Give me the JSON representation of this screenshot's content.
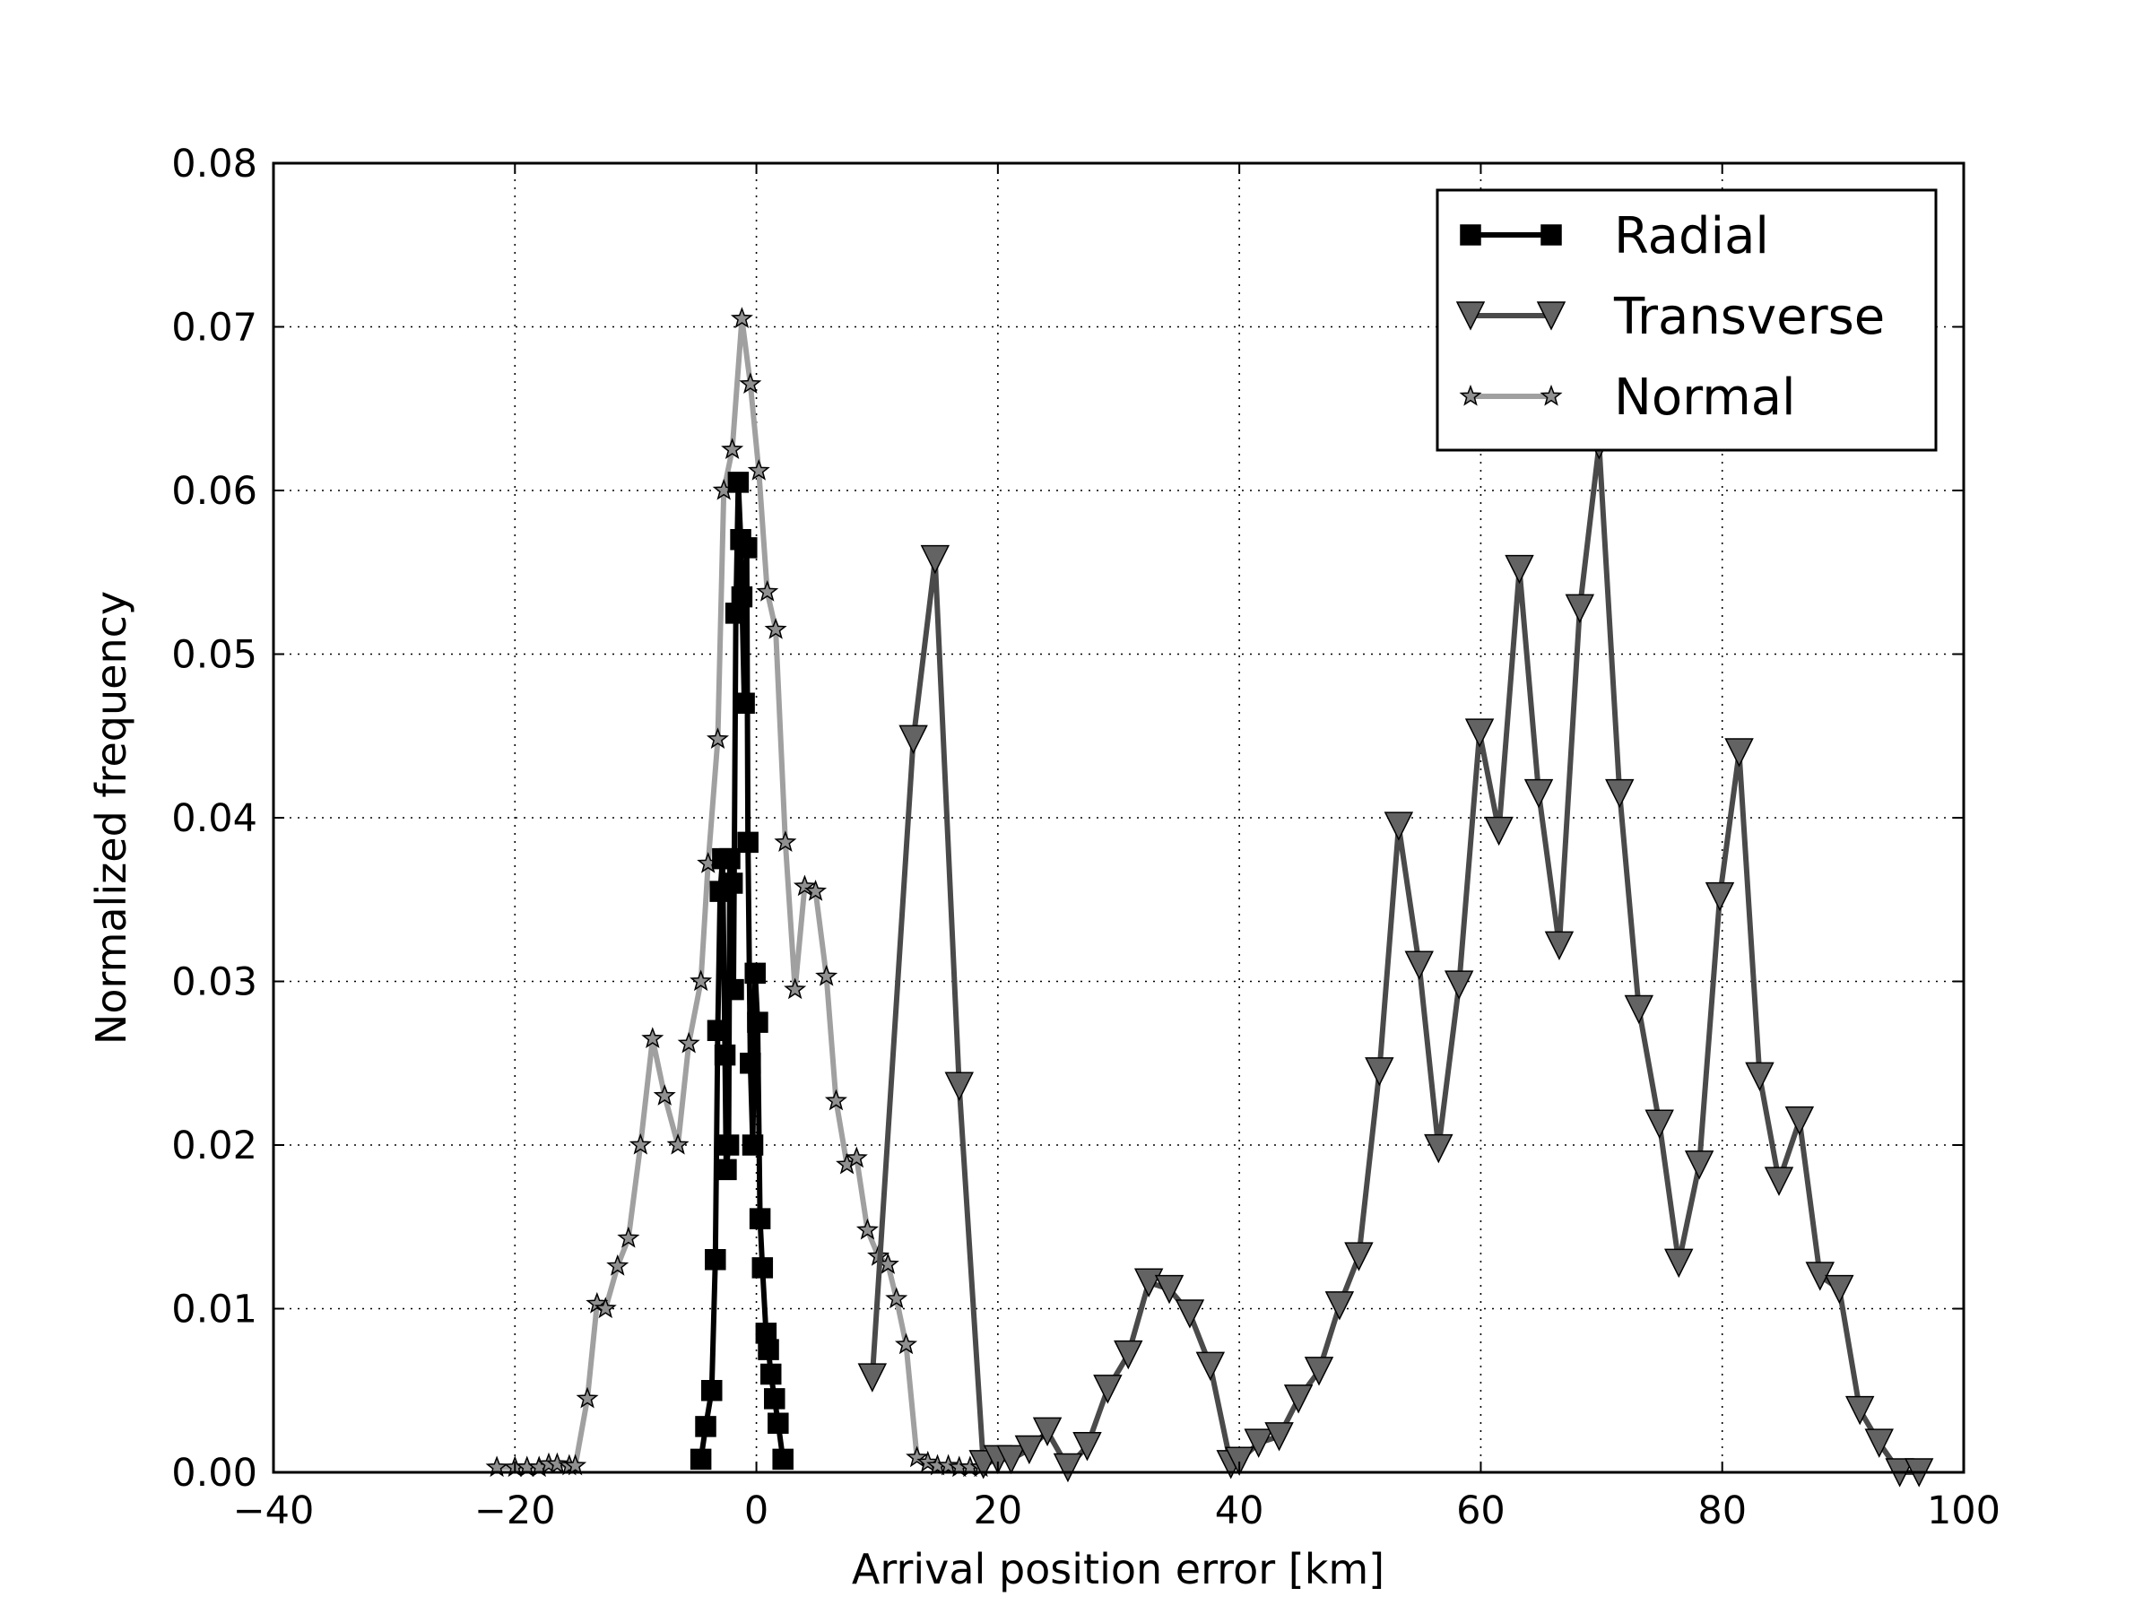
{
  "chart_data": {
    "type": "line",
    "title": "",
    "xlabel": "Arrival position error [km]",
    "ylabel": "Normalized frequency",
    "xlim": [
      -40,
      100
    ],
    "ylim": [
      0,
      0.08
    ],
    "xticks": [
      -40,
      -20,
      0,
      20,
      40,
      60,
      80,
      100
    ],
    "xtick_labels": [
      "−40",
      "−20",
      "0",
      "20",
      "40",
      "60",
      "80",
      "100"
    ],
    "yticks": [
      0,
      0.01,
      0.02,
      0.03,
      0.04,
      0.05,
      0.06,
      0.07,
      0.08
    ],
    "ytick_labels": [
      "0.00",
      "0.01",
      "0.02",
      "0.03",
      "0.04",
      "0.05",
      "0.06",
      "0.07",
      "0.08"
    ],
    "grid": true,
    "legend_position": "top-right",
    "series": [
      {
        "name": "Radial",
        "marker": "square",
        "color": "#000000",
        "marker_fill": "#000000",
        "x": [
          -4.6,
          -4.2,
          -3.7,
          -3.4,
          -3.2,
          -3.0,
          -2.8,
          -2.6,
          -2.5,
          -2.3,
          -2.2,
          -2.0,
          -1.9,
          -1.7,
          -1.5,
          -1.3,
          -1.2,
          -1.0,
          -0.8,
          -0.7,
          -0.5,
          -0.3,
          -0.1,
          0.1,
          0.3,
          0.5,
          0.8,
          1.0,
          1.2,
          1.5,
          1.8,
          2.2
        ],
        "y": [
          0.0008,
          0.0028,
          0.005,
          0.013,
          0.027,
          0.0355,
          0.0375,
          0.0255,
          0.0185,
          0.02,
          0.0375,
          0.036,
          0.0295,
          0.0525,
          0.0605,
          0.057,
          0.0535,
          0.047,
          0.0565,
          0.0385,
          0.025,
          0.02,
          0.0305,
          0.0275,
          0.0155,
          0.0125,
          0.0085,
          0.0075,
          0.006,
          0.0045,
          0.003,
          0.0008
        ]
      },
      {
        "name": "Transverse",
        "marker": "triangle-down",
        "color": "#4a4a4a",
        "marker_fill": "#636363",
        "x": [
          9.6,
          13.0,
          14.8,
          16.8,
          18.8,
          20.0,
          21.1,
          22.6,
          24.1,
          25.8,
          27.4,
          29.1,
          30.8,
          32.5,
          34.2,
          35.9,
          37.6,
          39.3,
          40.0,
          41.6,
          43.3,
          44.9,
          46.6,
          48.3,
          49.9,
          51.6,
          53.2,
          54.9,
          56.5,
          58.2,
          59.9,
          61.5,
          63.2,
          64.8,
          66.5,
          68.2,
          69.8,
          71.5,
          73.1,
          74.8,
          76.4,
          78.1,
          79.8,
          81.4,
          83.1,
          84.7,
          86.4,
          88.1,
          89.7,
          91.4,
          93.0,
          94.7,
          96.3
        ],
        "y": [
          0.0058,
          0.0448,
          0.0558,
          0.0236,
          0.0005,
          0.0008,
          0.0008,
          0.0014,
          0.0025,
          0.0003,
          0.0016,
          0.0051,
          0.0072,
          0.0116,
          0.0112,
          0.0097,
          0.0065,
          0.0005,
          0.0007,
          0.0018,
          0.0022,
          0.0045,
          0.0062,
          0.0102,
          0.0132,
          0.0245,
          0.0395,
          0.031,
          0.0198,
          0.0298,
          0.0452,
          0.0392,
          0.0552,
          0.0415,
          0.0322,
          0.0528,
          0.0628,
          0.0415,
          0.0283,
          0.0213,
          0.0128,
          0.0188,
          0.0352,
          0.044,
          0.0242,
          0.0178,
          0.0215,
          0.012,
          0.0112,
          0.0038,
          0.0018,
          0.0,
          0.0
        ]
      },
      {
        "name": "Normal",
        "marker": "star",
        "color": "#a0a0a0",
        "marker_fill": "#909090",
        "x": [
          -21.5,
          -20.0,
          -19.0,
          -18.0,
          -17.2,
          -16.5,
          -15.5,
          -15.0,
          -14.0,
          -13.2,
          -12.5,
          -11.5,
          -10.6,
          -9.6,
          -8.6,
          -7.6,
          -6.5,
          -5.6,
          -4.6,
          -4.0,
          -3.2,
          -2.7,
          -2.0,
          -1.2,
          -0.5,
          0.2,
          0.9,
          1.6,
          2.4,
          3.2,
          4.0,
          4.9,
          5.8,
          6.6,
          7.5,
          8.3,
          9.2,
          10.1,
          10.9,
          11.6,
          12.4,
          13.3,
          14.2,
          15.0,
          15.9,
          16.8,
          17.7,
          18.6
        ],
        "y": [
          0.0003,
          0.0003,
          0.0003,
          0.0003,
          0.0005,
          0.0005,
          0.0004,
          0.0004,
          0.0045,
          0.0103,
          0.01,
          0.0126,
          0.0143,
          0.02,
          0.0265,
          0.023,
          0.02,
          0.0262,
          0.03,
          0.0372,
          0.0448,
          0.06,
          0.0625,
          0.0705,
          0.0665,
          0.0612,
          0.0538,
          0.0515,
          0.0385,
          0.0295,
          0.0358,
          0.0355,
          0.0303,
          0.0227,
          0.0188,
          0.0192,
          0.0148,
          0.0132,
          0.0127,
          0.0106,
          0.0078,
          0.0009,
          0.0006,
          0.0004,
          0.0004,
          0.0003,
          0.0003,
          0.0003
        ]
      }
    ]
  }
}
